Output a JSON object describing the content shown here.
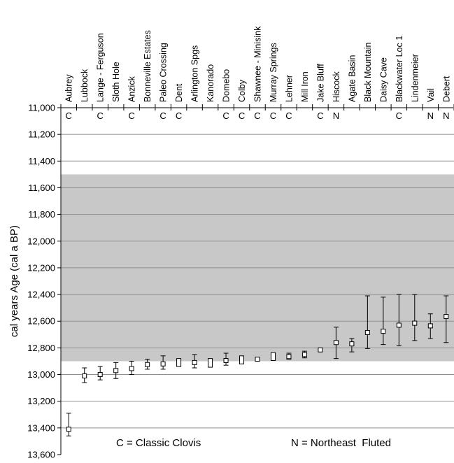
{
  "chart_data": {
    "type": "scatter",
    "ylabel": "cal years Age (cal a BP)",
    "ylim": [
      11000,
      13600
    ],
    "y_reversed": true,
    "yticks": [
      "11,000",
      "11,200",
      "11,400",
      "11,600",
      "11,800",
      "12,000",
      "12,200",
      "12,400",
      "12,600",
      "12,800",
      "13,000",
      "13,200",
      "13,400",
      "13,600"
    ],
    "shaded_band": [
      11500,
      12900
    ],
    "grid": true,
    "sites": [
      {
        "name": "Aubrey",
        "marker": "C",
        "value": 13410,
        "low": 13290,
        "high": 13460,
        "bar": "whisker"
      },
      {
        "name": "Lubbock",
        "marker": "",
        "value": 13010,
        "low": 12950,
        "high": 13060,
        "bar": "whisker"
      },
      {
        "name": "Lange - Ferguson",
        "marker": "C",
        "value": 13000,
        "low": 12940,
        "high": 13040,
        "bar": "whisker"
      },
      {
        "name": "Sloth Hole",
        "marker": "",
        "value": 12970,
        "low": 12910,
        "high": 13030,
        "bar": "whisker"
      },
      {
        "name": "Anzick",
        "marker": "C",
        "value": 12955,
        "low": 12900,
        "high": 13000,
        "bar": "whisker"
      },
      {
        "name": "Bonneville Estates",
        "marker": "",
        "value": 12925,
        "low": 12885,
        "high": 12960,
        "bar": "whisker"
      },
      {
        "name": "Paleo Crossing",
        "marker": "C",
        "value": 12920,
        "low": 12860,
        "high": 12960,
        "bar": "whisker"
      },
      {
        "name": "Dent",
        "marker": "C",
        "value": 12910,
        "low": 12880,
        "high": 12940,
        "bar": "box"
      },
      {
        "name": "Arlington Spgs",
        "marker": "",
        "value": 12910,
        "low": 12850,
        "high": 12950,
        "bar": "whisker"
      },
      {
        "name": "Kanorado",
        "marker": "",
        "value": 12915,
        "low": 12880,
        "high": 12945,
        "bar": "box"
      },
      {
        "name": "Domebo",
        "marker": "C",
        "value": 12895,
        "low": 12840,
        "high": 12930,
        "bar": "whisker"
      },
      {
        "name": "Colby",
        "marker": "C",
        "value": 12890,
        "low": 12860,
        "high": 12920,
        "bar": "box"
      },
      {
        "name": "Shawnee - Minisink",
        "marker": "C",
        "value": 12885,
        "low": 12870,
        "high": 12900,
        "bar": "box"
      },
      {
        "name": "Murray Springs",
        "marker": "C",
        "value": 12865,
        "low": 12835,
        "high": 12895,
        "bar": "box"
      },
      {
        "name": "Lehner",
        "marker": "C",
        "value": 12865,
        "low": 12840,
        "high": 12885,
        "bar": "whisker"
      },
      {
        "name": "Mill Iron",
        "marker": "",
        "value": 12850,
        "low": 12825,
        "high": 12875,
        "bar": "whisker"
      },
      {
        "name": "Jake Bluff",
        "marker": "C",
        "value": 12815,
        "low": 12800,
        "high": 12830,
        "bar": "box"
      },
      {
        "name": "Hiscock",
        "marker": "N",
        "value": 12760,
        "low": 12645,
        "high": 12880,
        "bar": "whisker"
      },
      {
        "name": "Agate Basin",
        "marker": "",
        "value": 12770,
        "low": 12730,
        "high": 12830,
        "bar": "whisker"
      },
      {
        "name": "Black Mountain",
        "marker": "",
        "value": 12685,
        "low": 12410,
        "high": 12805,
        "bar": "whisker"
      },
      {
        "name": "Daisy Cave",
        "marker": "",
        "value": 12675,
        "low": 12420,
        "high": 12775,
        "bar": "whisker"
      },
      {
        "name": "Blackwater Loc 1",
        "marker": "C",
        "value": 12630,
        "low": 12400,
        "high": 12785,
        "bar": "whisker"
      },
      {
        "name": "Lindenmeier",
        "marker": "",
        "value": 12615,
        "low": 12400,
        "high": 12745,
        "bar": "whisker"
      },
      {
        "name": "Vail",
        "marker": "N",
        "value": 12635,
        "low": 12545,
        "high": 12730,
        "bar": "whisker"
      },
      {
        "name": "Debert",
        "marker": "N",
        "value": 12565,
        "low": 12410,
        "high": 12760,
        "bar": "whisker"
      }
    ],
    "annotations": [
      "C = Classic Clovis",
      "N = Northeast  Fluted"
    ],
    "colors": {
      "band": "#c8c8c8",
      "grid": "#8f8f8f",
      "axis": "#000000"
    }
  }
}
